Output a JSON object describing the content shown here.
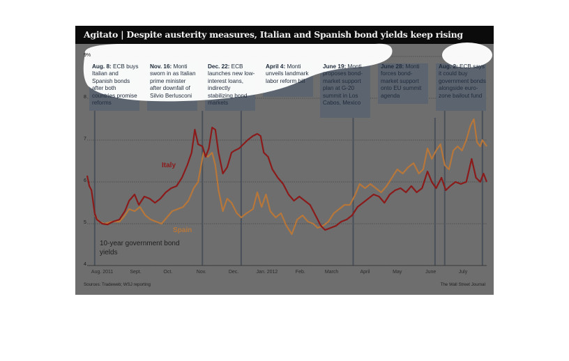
{
  "title": "Agitato | Despite austerity measures, Italian and Spanish bond yields keep rising",
  "source": "Sources: Tradeweb; WSJ reporting",
  "credit": "The Wall Street Journal",
  "description": "10-year government bond yields",
  "colors": {
    "italy": "#8b1a1a",
    "spain": "#b8773a",
    "background": "#6e6e6e",
    "title_bar": "#0b0b0b",
    "annotation_box": "#5c6470"
  },
  "chart_data": {
    "type": "line",
    "title": "Agitato | Despite austerity measures, Italian and Spanish bond yields keep rising",
    "ylabel": "",
    "ylim": [
      4,
      9
    ],
    "y_unit": "%",
    "yticks": [
      4,
      5,
      6,
      7,
      8,
      9
    ],
    "ytick_labels": [
      "4",
      "5",
      "6",
      "7",
      "8",
      "9%"
    ],
    "xlim": [
      "2011-08-01",
      "2012-08-06"
    ],
    "xticks": [
      {
        "date": "2011-08-15",
        "label": "Aug. 2011"
      },
      {
        "date": "2011-09-15",
        "label": "Sept."
      },
      {
        "date": "2011-10-15",
        "label": "Oct."
      },
      {
        "date": "2011-11-15",
        "label": "Nov."
      },
      {
        "date": "2011-12-15",
        "label": "Dec."
      },
      {
        "date": "2012-01-15",
        "label": "Jan. 2012"
      },
      {
        "date": "2012-02-15",
        "label": "Feb."
      },
      {
        "date": "2012-03-15",
        "label": "March"
      },
      {
        "date": "2012-04-15",
        "label": "April"
      },
      {
        "date": "2012-05-15",
        "label": "May"
      },
      {
        "date": "2012-06-15",
        "label": "June"
      },
      {
        "date": "2012-07-15",
        "label": "July"
      }
    ],
    "grid": "horizontal dotted",
    "series": [
      {
        "name": "Italy",
        "data": [
          [
            "2011-08-01",
            6.15
          ],
          [
            "2011-08-03",
            5.9
          ],
          [
            "2011-08-05",
            5.8
          ],
          [
            "2011-08-08",
            5.25
          ],
          [
            "2011-08-10",
            5.1
          ],
          [
            "2011-08-15",
            5.0
          ],
          [
            "2011-08-20",
            4.98
          ],
          [
            "2011-08-25",
            5.05
          ],
          [
            "2011-08-31",
            5.1
          ],
          [
            "2011-09-05",
            5.3
          ],
          [
            "2011-09-09",
            5.55
          ],
          [
            "2011-09-14",
            5.7
          ],
          [
            "2011-09-18",
            5.45
          ],
          [
            "2011-09-23",
            5.65
          ],
          [
            "2011-09-28",
            5.6
          ],
          [
            "2011-10-03",
            5.5
          ],
          [
            "2011-10-08",
            5.6
          ],
          [
            "2011-10-13",
            5.75
          ],
          [
            "2011-10-18",
            5.85
          ],
          [
            "2011-10-23",
            5.9
          ],
          [
            "2011-10-28",
            6.1
          ],
          [
            "2011-11-02",
            6.4
          ],
          [
            "2011-11-06",
            6.7
          ],
          [
            "2011-11-09",
            7.25
          ],
          [
            "2011-11-12",
            6.9
          ],
          [
            "2011-11-16",
            6.85
          ],
          [
            "2011-11-19",
            6.6
          ],
          [
            "2011-11-22",
            6.8
          ],
          [
            "2011-11-25",
            7.3
          ],
          [
            "2011-11-28",
            7.25
          ],
          [
            "2011-12-01",
            6.7
          ],
          [
            "2011-12-05",
            6.2
          ],
          [
            "2011-12-09",
            6.35
          ],
          [
            "2011-12-13",
            6.7
          ],
          [
            "2011-12-16",
            6.75
          ],
          [
            "2011-12-20",
            6.8
          ],
          [
            "2011-12-24",
            6.9
          ],
          [
            "2011-12-28",
            7.0
          ],
          [
            "2012-01-02",
            7.1
          ],
          [
            "2012-01-06",
            7.15
          ],
          [
            "2012-01-09",
            7.1
          ],
          [
            "2012-01-12",
            6.7
          ],
          [
            "2012-01-16",
            6.6
          ],
          [
            "2012-01-20",
            6.3
          ],
          [
            "2012-01-25",
            6.1
          ],
          [
            "2012-01-30",
            5.95
          ],
          [
            "2012-02-04",
            5.7
          ],
          [
            "2012-02-09",
            5.55
          ],
          [
            "2012-02-14",
            5.65
          ],
          [
            "2012-02-19",
            5.55
          ],
          [
            "2012-02-24",
            5.45
          ],
          [
            "2012-03-01",
            5.15
          ],
          [
            "2012-03-05",
            4.95
          ],
          [
            "2012-03-09",
            4.85
          ],
          [
            "2012-03-14",
            4.9
          ],
          [
            "2012-03-19",
            4.95
          ],
          [
            "2012-03-24",
            5.05
          ],
          [
            "2012-03-29",
            5.1
          ],
          [
            "2012-04-03",
            5.2
          ],
          [
            "2012-04-08",
            5.4
          ],
          [
            "2012-04-13",
            5.5
          ],
          [
            "2012-04-18",
            5.6
          ],
          [
            "2012-04-23",
            5.7
          ],
          [
            "2012-04-28",
            5.65
          ],
          [
            "2012-05-03",
            5.5
          ],
          [
            "2012-05-08",
            5.7
          ],
          [
            "2012-05-13",
            5.8
          ],
          [
            "2012-05-18",
            5.85
          ],
          [
            "2012-05-23",
            5.75
          ],
          [
            "2012-05-28",
            5.9
          ],
          [
            "2012-06-02",
            5.75
          ],
          [
            "2012-06-07",
            5.85
          ],
          [
            "2012-06-12",
            6.25
          ],
          [
            "2012-06-16",
            6.0
          ],
          [
            "2012-06-20",
            5.85
          ],
          [
            "2012-06-25",
            6.1
          ],
          [
            "2012-06-29",
            5.8
          ],
          [
            "2012-07-03",
            5.9
          ],
          [
            "2012-07-08",
            6.0
          ],
          [
            "2012-07-13",
            5.95
          ],
          [
            "2012-07-18",
            6.0
          ],
          [
            "2012-07-23",
            6.55
          ],
          [
            "2012-07-27",
            6.1
          ],
          [
            "2012-07-31",
            6.0
          ],
          [
            "2012-08-03",
            6.2
          ],
          [
            "2012-08-06",
            6.0
          ]
        ]
      },
      {
        "name": "Spain",
        "data": [
          [
            "2011-08-08",
            5.2
          ],
          [
            "2011-08-12",
            5.05
          ],
          [
            "2011-08-17",
            5.0
          ],
          [
            "2011-08-24",
            5.05
          ],
          [
            "2011-08-31",
            5.05
          ],
          [
            "2011-09-05",
            5.2
          ],
          [
            "2011-09-09",
            5.35
          ],
          [
            "2011-09-14",
            5.3
          ],
          [
            "2011-09-19",
            5.4
          ],
          [
            "2011-09-24",
            5.2
          ],
          [
            "2011-09-29",
            5.1
          ],
          [
            "2011-10-04",
            5.05
          ],
          [
            "2011-10-09",
            5.0
          ],
          [
            "2011-10-14",
            5.15
          ],
          [
            "2011-10-19",
            5.3
          ],
          [
            "2011-10-24",
            5.35
          ],
          [
            "2011-10-29",
            5.4
          ],
          [
            "2011-11-03",
            5.55
          ],
          [
            "2011-11-08",
            5.85
          ],
          [
            "2011-11-12",
            6.0
          ],
          [
            "2011-11-17",
            6.7
          ],
          [
            "2011-11-21",
            6.6
          ],
          [
            "2011-11-25",
            6.7
          ],
          [
            "2011-11-28",
            6.4
          ],
          [
            "2011-12-01",
            5.8
          ],
          [
            "2011-12-05",
            5.3
          ],
          [
            "2011-12-09",
            5.6
          ],
          [
            "2011-12-13",
            5.5
          ],
          [
            "2011-12-18",
            5.25
          ],
          [
            "2011-12-22",
            5.15
          ],
          [
            "2011-12-27",
            5.25
          ],
          [
            "2012-01-02",
            5.35
          ],
          [
            "2012-01-06",
            5.75
          ],
          [
            "2012-01-10",
            5.4
          ],
          [
            "2012-01-14",
            5.7
          ],
          [
            "2012-01-18",
            5.3
          ],
          [
            "2012-01-23",
            5.15
          ],
          [
            "2012-01-28",
            5.25
          ],
          [
            "2012-02-02",
            4.95
          ],
          [
            "2012-02-07",
            4.75
          ],
          [
            "2012-02-12",
            5.1
          ],
          [
            "2012-02-17",
            5.2
          ],
          [
            "2012-02-22",
            5.05
          ],
          [
            "2012-02-27",
            5.0
          ],
          [
            "2012-03-02",
            4.9
          ],
          [
            "2012-03-07",
            4.95
          ],
          [
            "2012-03-12",
            5.05
          ],
          [
            "2012-03-17",
            5.25
          ],
          [
            "2012-03-22",
            5.35
          ],
          [
            "2012-03-27",
            5.45
          ],
          [
            "2012-04-01",
            5.45
          ],
          [
            "2012-04-06",
            5.7
          ],
          [
            "2012-04-10",
            5.95
          ],
          [
            "2012-04-15",
            5.85
          ],
          [
            "2012-04-20",
            5.95
          ],
          [
            "2012-04-25",
            5.85
          ],
          [
            "2012-04-30",
            5.75
          ],
          [
            "2012-05-05",
            5.9
          ],
          [
            "2012-05-10",
            6.1
          ],
          [
            "2012-05-15",
            6.3
          ],
          [
            "2012-05-20",
            6.2
          ],
          [
            "2012-05-25",
            6.35
          ],
          [
            "2012-05-30",
            6.45
          ],
          [
            "2012-06-04",
            6.2
          ],
          [
            "2012-06-08",
            6.3
          ],
          [
            "2012-06-12",
            6.8
          ],
          [
            "2012-06-16",
            6.55
          ],
          [
            "2012-06-20",
            6.75
          ],
          [
            "2012-06-24",
            6.9
          ],
          [
            "2012-06-28",
            6.4
          ],
          [
            "2012-07-02",
            6.3
          ],
          [
            "2012-07-06",
            6.75
          ],
          [
            "2012-07-10",
            6.85
          ],
          [
            "2012-07-14",
            6.75
          ],
          [
            "2012-07-18",
            7.0
          ],
          [
            "2012-07-22",
            7.35
          ],
          [
            "2012-07-25",
            7.5
          ],
          [
            "2012-07-28",
            6.95
          ],
          [
            "2012-07-31",
            6.85
          ],
          [
            "2012-08-02",
            7.0
          ],
          [
            "2012-08-06",
            6.85
          ]
        ]
      }
    ],
    "annotations": [
      {
        "date": "2011-08-08",
        "head": "Aug. 8:",
        "text": "ECB buys Italian and Spanish bonds after both countries promise reforms"
      },
      {
        "date": "2011-11-16",
        "head": "Nov. 16:",
        "text": "Monti sworn in as Italian prime minister after downfall of Silvio Berlusconi"
      },
      {
        "date": "2011-12-22",
        "head": "Dec. 22:",
        "text": "ECB launches new low-interest loans, indirectly stabilizing bond markets"
      },
      {
        "date": "2012-04-04",
        "head": "April 4:",
        "text": "Monti unveils landmark labor reform bill"
      },
      {
        "date": "2012-06-19",
        "head": "June 19:",
        "text": "Monti proposes bond-market support plan at G-20 summit in Los Cabos, Mexico"
      },
      {
        "date": "2012-06-28",
        "head": "June 28:",
        "text": "Monti forces bond-market support onto EU summit agenda"
      },
      {
        "date": "2012-08-02",
        "head": "Aug. 2:",
        "text": "ECB says it could buy government bonds alongside euro-zone bailout fund"
      }
    ]
  }
}
